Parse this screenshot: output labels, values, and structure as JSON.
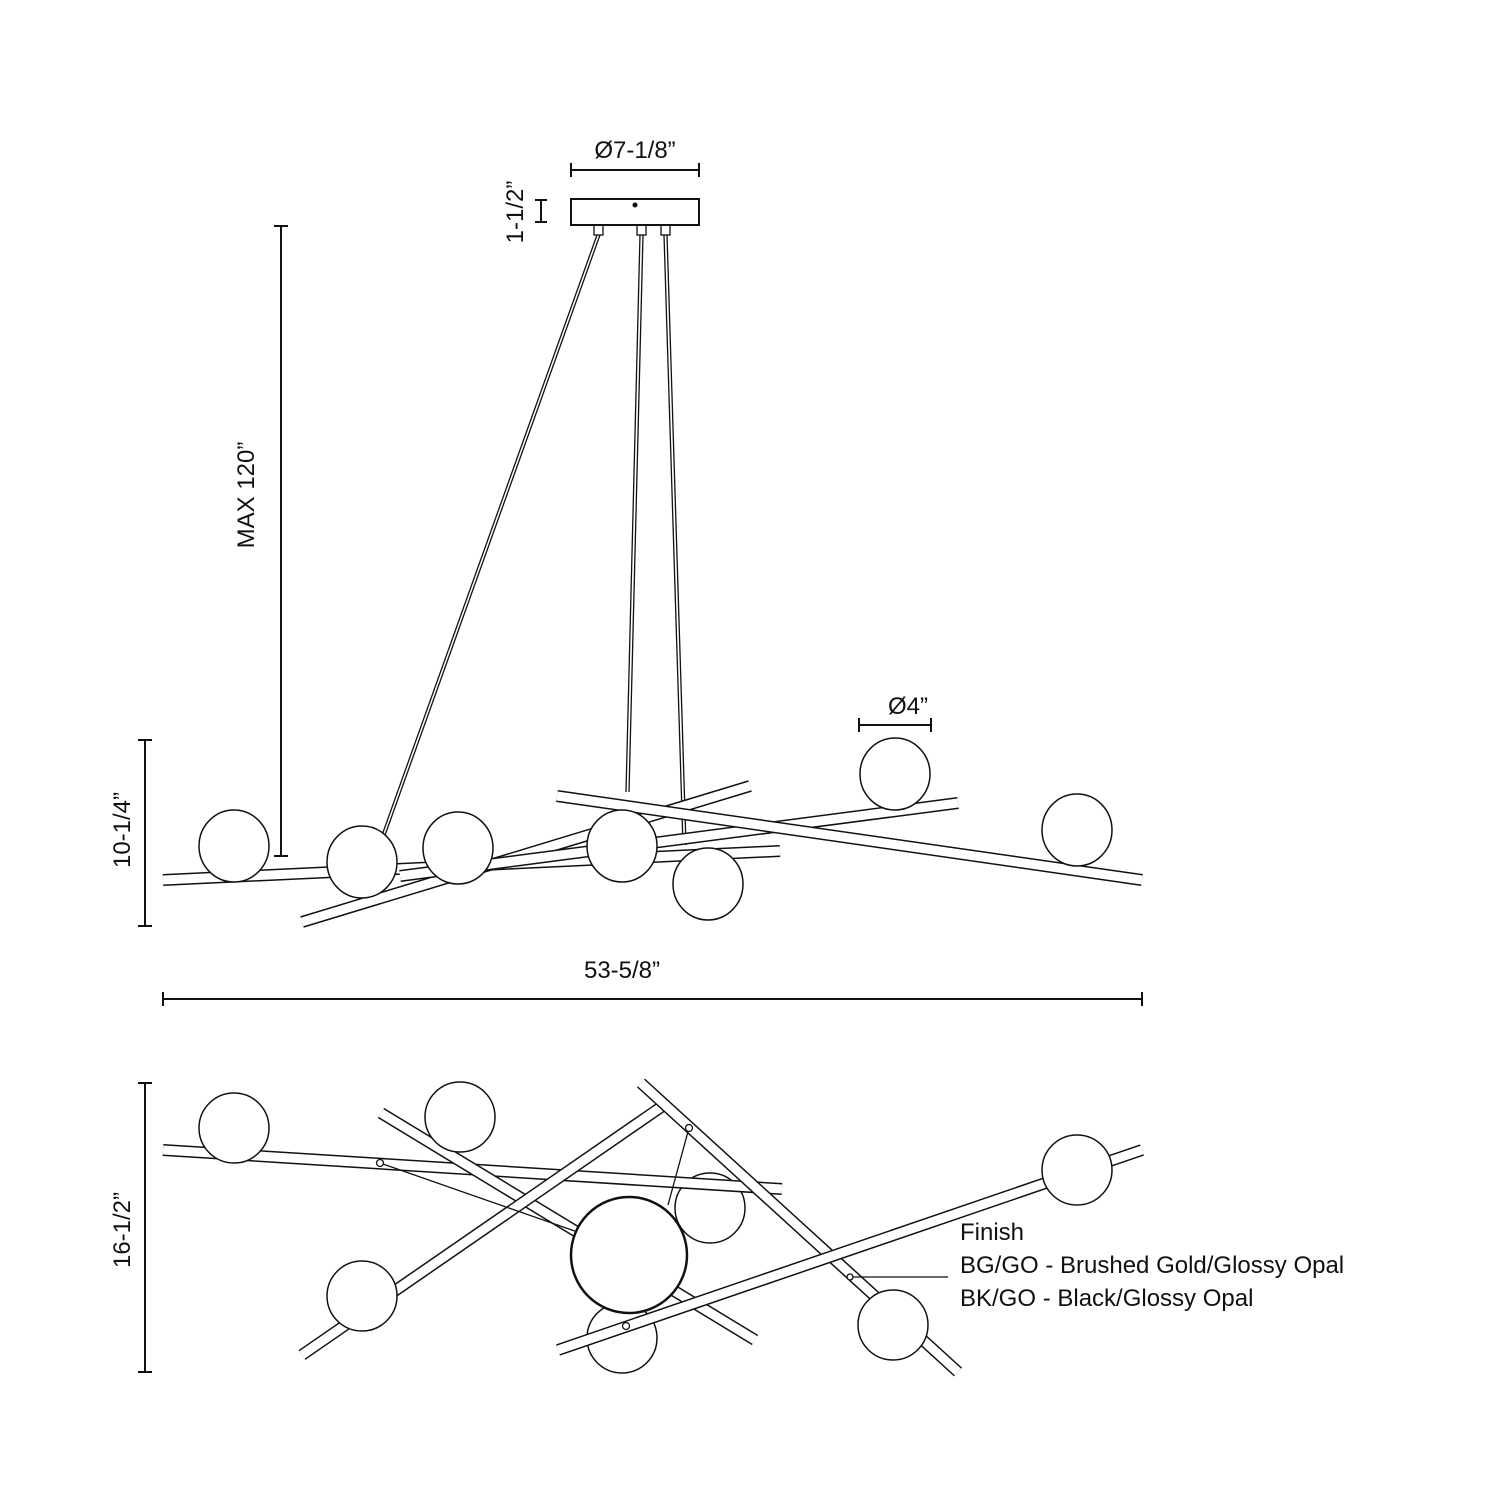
{
  "dimensions": {
    "canopy_diameter": "Ø7-1/8”",
    "canopy_height": "1-1/2”",
    "max_height": "MAX 120”",
    "fixture_height": "10-1/4”",
    "globe_diameter": "Ø4”",
    "overall_width": "53-5/8”",
    "top_view_depth": "16-1/2”"
  },
  "finish": {
    "heading": "Finish",
    "options": [
      "BG/GO - Brushed Gold/Glossy Opal",
      "BK/GO - Black/Glossy Opal"
    ]
  },
  "colors": {
    "line": "#111111",
    "background": "#ffffff"
  }
}
